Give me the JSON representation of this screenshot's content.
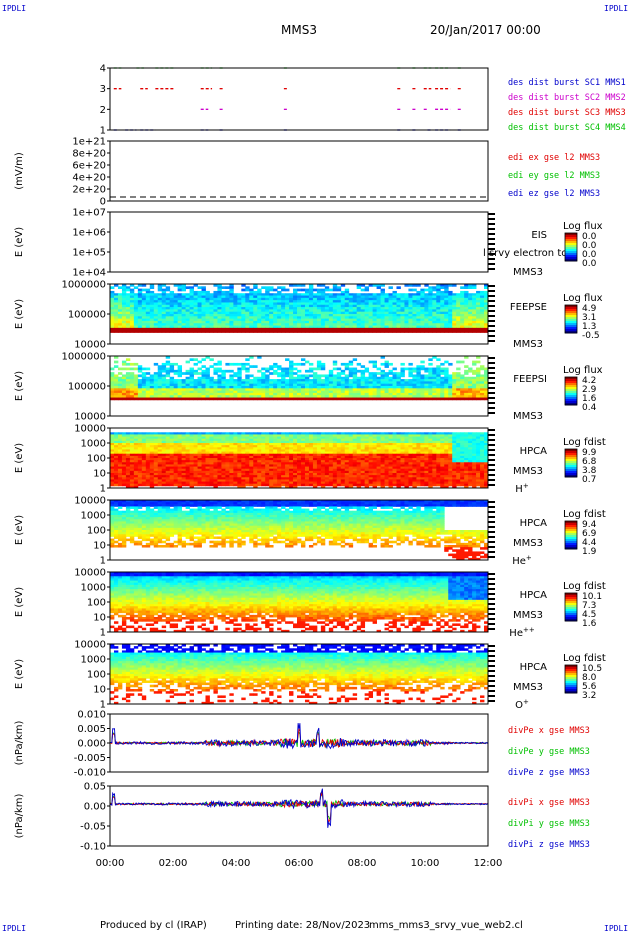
{
  "header": {
    "title": "MMS3",
    "date": "20/Jan/2017 00:00",
    "corner_label": "IPDLI"
  },
  "footer": {
    "produced_by": "Produced by cl (IRAP)",
    "printing_date": "Printing date: 28/Nov/2023",
    "filename": "mms_mms3_srvy_vue_web2.cl"
  },
  "colors": {
    "red": "#e00000",
    "green": "#00c000",
    "blue": "#0000cc",
    "magenta": "#cc00cc"
  },
  "x_axis": {
    "ticks": [
      "00:00",
      "02:00",
      "04:00",
      "06:00",
      "08:00",
      "10:00",
      "12:00"
    ],
    "range_hours": [
      0,
      12
    ]
  },
  "chart_data": [
    {
      "type": "scatter",
      "panel": "burst",
      "yticks": [
        "4",
        "3",
        "2",
        "1"
      ],
      "legend": [
        {
          "name": "des dist burst SC1 MMS1",
          "color": "#0000cc"
        },
        {
          "name": "des dist burst SC2 MMS2",
          "color": "#cc00cc"
        },
        {
          "name": "des dist burst SC3 MMS3",
          "color": "#e00000"
        },
        {
          "name": "des dist burst SC4 MMS4",
          "color": "#00c000"
        }
      ]
    },
    {
      "type": "line",
      "panel": "edi",
      "ylabel": "(mV/m)",
      "yticks": [
        "1e+21",
        "8e+20",
        "6e+20",
        "4e+20",
        "2e+20",
        "0"
      ],
      "legend": [
        {
          "name": "edi ex gse l2 MMS3",
          "color": "#e00000"
        },
        {
          "name": "edi ey gse l2 MMS3",
          "color": "#00c000"
        },
        {
          "name": "edi ez gse l2 MMS3",
          "color": "#0000cc"
        }
      ]
    },
    {
      "type": "heatmap",
      "panel": "eis",
      "ylabel": "E (eV)",
      "yticks": [
        "1e+07",
        "1e+06",
        "1e+05",
        "1e+04"
      ],
      "labels": [
        "EIS",
        "MMS3"
      ],
      "overlay_text": "l srvy electron to",
      "colorbar": {
        "title": "Log flux",
        "ticks": [
          "0.0",
          "0.0",
          "0.0",
          "0.0"
        ]
      }
    },
    {
      "type": "heatmap",
      "panel": "feepse",
      "ylabel": "E (eV)",
      "yticks": [
        "1000000",
        "100000",
        "10000"
      ],
      "labels": [
        "FEEPSE",
        "MMS3"
      ],
      "colorbar": {
        "title": "Log flux",
        "ticks": [
          "4.9",
          "3.1",
          "1.3",
          "-0.5"
        ]
      }
    },
    {
      "type": "heatmap",
      "panel": "feepsi",
      "ylabel": "E (eV)",
      "yticks": [
        "1000000",
        "100000",
        "10000"
      ],
      "labels": [
        "FEEPSI",
        "MMS3"
      ],
      "colorbar": {
        "title": "Log flux",
        "ticks": [
          "4.2",
          "2.9",
          "1.6",
          "0.4"
        ]
      }
    },
    {
      "type": "heatmap",
      "panel": "hpca-h",
      "ylabel": "E (eV)",
      "yticks": [
        "10000",
        "1000",
        "100",
        "10",
        "1"
      ],
      "labels": [
        "HPCA",
        "MMS3"
      ],
      "species": "H",
      "species_charge": "+",
      "colorbar": {
        "title": "Log fdist",
        "ticks": [
          "9.9",
          "6.8",
          "3.8",
          "0.7"
        ]
      }
    },
    {
      "type": "heatmap",
      "panel": "hpca-he",
      "ylabel": "E (eV)",
      "yticks": [
        "10000",
        "1000",
        "100",
        "10",
        "1"
      ],
      "labels": [
        "HPCA",
        "MMS3"
      ],
      "species": "He",
      "species_charge": "+",
      "colorbar": {
        "title": "Log fdist",
        "ticks": [
          "9.4",
          "6.9",
          "4.4",
          "1.9"
        ]
      }
    },
    {
      "type": "heatmap",
      "panel": "hpca-hepp",
      "ylabel": "E (eV)",
      "yticks": [
        "10000",
        "1000",
        "100",
        "10",
        "1"
      ],
      "labels": [
        "HPCA",
        "MMS3"
      ],
      "species": "He",
      "species_charge": "++",
      "colorbar": {
        "title": "Log fdist",
        "ticks": [
          "10.1",
          "7.3",
          "4.5",
          "1.6"
        ]
      }
    },
    {
      "type": "heatmap",
      "panel": "hpca-o",
      "ylabel": "E (eV)",
      "yticks": [
        "10000",
        "1000",
        "100",
        "10",
        "1"
      ],
      "labels": [
        "HPCA",
        "MMS3"
      ],
      "species": "O",
      "species_charge": "+",
      "colorbar": {
        "title": "Log fdist",
        "ticks": [
          "10.5",
          "8.0",
          "5.6",
          "3.2"
        ]
      }
    },
    {
      "type": "line",
      "panel": "divpe",
      "ylabel": "(nPa/km)",
      "yticks": [
        "0.010",
        "0.005",
        "0.000",
        "-0.005",
        "-0.010"
      ],
      "legend": [
        {
          "name": "divPe x gse MMS3",
          "color": "#e00000"
        },
        {
          "name": "divPe y gse MMS3",
          "color": "#00c000"
        },
        {
          "name": "divPe z gse MMS3",
          "color": "#0000cc"
        }
      ]
    },
    {
      "type": "line",
      "panel": "divpi",
      "ylabel": "(nPa/km)",
      "yticks": [
        "0.05",
        "0.00",
        "-0.05",
        "-0.10"
      ],
      "legend": [
        {
          "name": "divPi x gse MMS3",
          "color": "#e00000"
        },
        {
          "name": "divPi y gse MMS3",
          "color": "#00c000"
        },
        {
          "name": "divPi z gse MMS3",
          "color": "#0000cc"
        }
      ]
    }
  ]
}
